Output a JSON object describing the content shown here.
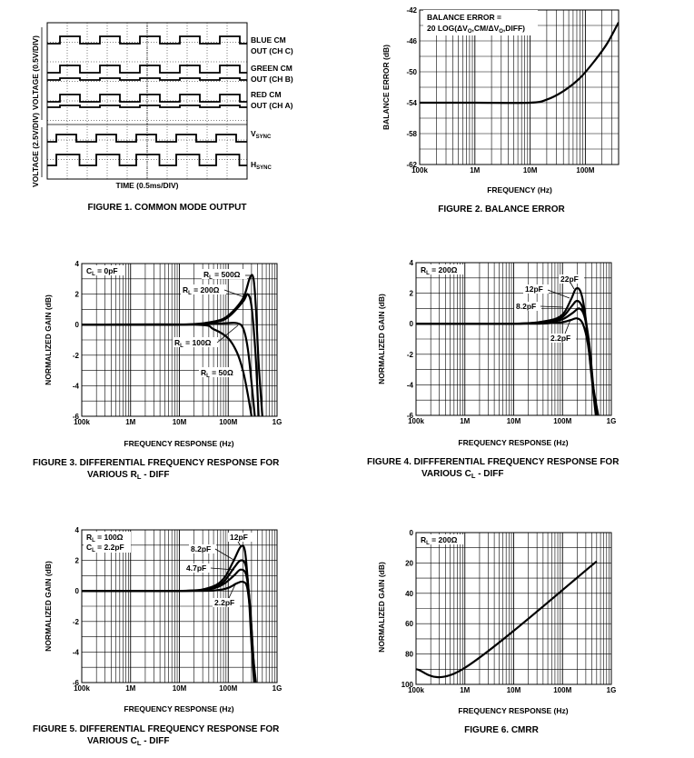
{
  "chart_data": [
    {
      "type": "line",
      "title": "FIGURE 1.  COMMON MODE OUTPUT",
      "xlabel": "TIME (0.5ms/DIV)",
      "ylabels": [
        "VOLTAGE (0.5V/DIV)",
        "VOLTAGE (2.5V/DIV)"
      ],
      "traces": [
        {
          "label": "BLUE CM",
          "label2": "OUT (CH C)"
        },
        {
          "label": "GREEN CM",
          "label2": "OUT (CH B)"
        },
        {
          "label": "RED CM",
          "label2": "OUT (CH A)"
        },
        {
          "label": "V",
          "sub": "SYNC"
        },
        {
          "label": "H",
          "sub": "SYNC"
        }
      ]
    },
    {
      "type": "line",
      "title": "FIGURE 2.  BALANCE ERROR",
      "xlabel": "FREQUENCY (Hz)",
      "ylabel": "BALANCE ERROR (dB)",
      "xscale": "log",
      "xlim": [
        100000,
        400000000
      ],
      "ylim": [
        -62,
        -42
      ],
      "xticks": [
        {
          "v": 100000,
          "t": "100k"
        },
        {
          "v": 1000000,
          "t": "1M"
        },
        {
          "v": 10000000,
          "t": "10M"
        },
        {
          "v": 100000000,
          "t": "100M"
        }
      ],
      "yticks": [
        "-42",
        "-46",
        "-50",
        "-54",
        "-58",
        "-62"
      ],
      "legend": [
        "BALANCE ERROR =",
        "20 LOG(ΔV",
        "O",
        ",CM/ΔV",
        "O",
        ",DIFF)"
      ],
      "series": [
        {
          "name": "balance",
          "x": [
            100000,
            1000000,
            10000000,
            20000000,
            40000000,
            80000000,
            150000000,
            250000000,
            400000000
          ],
          "y": [
            -54,
            -54,
            -54,
            -53.6,
            -52.5,
            -50.8,
            -48.5,
            -46.3,
            -43.6
          ]
        }
      ]
    },
    {
      "type": "line",
      "title": "FIGURE 3.  DIFFERENTIAL FREQUENCY RESPONSE FOR",
      "title2": "VARIOUS R",
      "title2_sub": "L",
      "title2_rest": " - DIFF",
      "xlabel": "FREQUENCY RESPONSE (Hz)",
      "ylabel": "NORMALIZED GAIN (dB)",
      "xscale": "log",
      "xlim": [
        100000,
        1000000000
      ],
      "ylim": [
        -6,
        4
      ],
      "xticks": [
        {
          "v": 100000,
          "t": "100k"
        },
        {
          "v": 1000000,
          "t": "1M"
        },
        {
          "v": 10000000,
          "t": "10M"
        },
        {
          "v": 100000000,
          "t": "100M"
        },
        {
          "v": 1000000000,
          "t": "1G"
        }
      ],
      "yticks": [
        "4",
        "2",
        "0",
        "-2",
        "-4",
        "-6"
      ],
      "note": {
        "a": "C",
        "sub": "L",
        "b": " = 0pF"
      },
      "series": [
        {
          "name": "RL = 500Ω",
          "x": [
            100000,
            10000000,
            50000000,
            100000000,
            200000000,
            280000000,
            330000000,
            370000000,
            420000000,
            500000000
          ],
          "y": [
            0,
            0,
            0.2,
            0.6,
            1.7,
            3.1,
            3.0,
            1.0,
            -2.5,
            -6
          ]
        },
        {
          "name": "RL = 200Ω",
          "x": [
            100000,
            10000000,
            50000000,
            100000000,
            200000000,
            250000000,
            300000000,
            360000000,
            420000000
          ],
          "y": [
            0,
            0,
            0.15,
            0.5,
            1.5,
            2.0,
            1.2,
            -1.8,
            -6
          ]
        },
        {
          "name": "RL = 100Ω",
          "x": [
            100000,
            10000000,
            50000000,
            100000000,
            150000000,
            200000000,
            250000000,
            300000000,
            350000000
          ],
          "y": [
            0,
            0,
            0.05,
            0.1,
            0.1,
            -0.2,
            -1.5,
            -3.8,
            -6
          ]
        },
        {
          "name": "RL = 50Ω",
          "x": [
            100000,
            20000000,
            50000000,
            100000000,
            150000000,
            200000000,
            250000000,
            300000000
          ],
          "y": [
            0,
            0,
            -0.3,
            -0.9,
            -1.8,
            -3.0,
            -4.5,
            -6
          ]
        }
      ],
      "annotations": [
        {
          "a": "R",
          "sub": "L",
          "b": " = 500Ω"
        },
        {
          "a": "R",
          "sub": "L",
          "b": " = 200Ω"
        },
        {
          "a": "R",
          "sub": "L",
          "b": " = 100Ω"
        },
        {
          "a": "R",
          "sub": "L",
          "b": " = 50Ω"
        }
      ]
    },
    {
      "type": "line",
      "title": "FIGURE 4.  DIFFFERENTIAL FREQUENCY RESPONSE FOR",
      "title2": "VARIOUS C",
      "title2_sub": "L",
      "title2_rest": " - DIFF",
      "xlabel": "FREQUENCY RESPONSE (Hz)",
      "ylabel": "NORMALIZED GAIN (dB)",
      "xscale": "log",
      "xlim": [
        100000,
        1000000000
      ],
      "ylim": [
        -6,
        4
      ],
      "xticks": [
        {
          "v": 100000,
          "t": "100k"
        },
        {
          "v": 1000000,
          "t": "1M"
        },
        {
          "v": 10000000,
          "t": "10M"
        },
        {
          "v": 100000000,
          "t": "100M"
        },
        {
          "v": 1000000000,
          "t": "1G"
        }
      ],
      "yticks": [
        "4",
        "2",
        "0",
        "-2",
        "-4",
        "-6"
      ],
      "note": {
        "a": "R",
        "sub": "L",
        "b": " = 200Ω"
      },
      "series": [
        {
          "name": "22pF",
          "x": [
            100000,
            10000000,
            50000000,
            100000000,
            150000000,
            190000000,
            240000000,
            300000000,
            380000000,
            480000000
          ],
          "y": [
            0,
            0,
            0.2,
            0.6,
            1.6,
            2.3,
            2.0,
            0.3,
            -3.0,
            -6
          ]
        },
        {
          "name": "12pF",
          "x": [
            100000,
            10000000,
            50000000,
            100000000,
            150000000,
            200000000,
            260000000,
            330000000,
            420000000,
            500000000
          ],
          "y": [
            0,
            0,
            0.15,
            0.45,
            1.1,
            1.5,
            1.0,
            -0.8,
            -4.0,
            -6
          ]
        },
        {
          "name": "8.2pF",
          "x": [
            100000,
            10000000,
            50000000,
            100000000,
            160000000,
            220000000,
            280000000,
            350000000,
            440000000,
            520000000
          ],
          "y": [
            0,
            0,
            0.1,
            0.3,
            0.7,
            1.0,
            0.5,
            -1.2,
            -4.5,
            -6
          ]
        },
        {
          "name": "2.2pF",
          "x": [
            100000,
            20000000,
            60000000,
            100000000,
            150000000,
            200000000,
            260000000,
            330000000,
            430000000,
            540000000
          ],
          "y": [
            0,
            0,
            0.05,
            0.1,
            0.25,
            0.35,
            0.0,
            -1.3,
            -4.2,
            -6
          ]
        }
      ],
      "annotations": [
        {
          "t": "22pF"
        },
        {
          "t": "12pF"
        },
        {
          "t": "8.2pF"
        },
        {
          "t": "2.2pF"
        }
      ]
    },
    {
      "type": "line",
      "title": "FIGURE 5.  DIFFERENTIAL FREQUENCY RESPONSE FOR",
      "title2": "VARIOUS C",
      "title2_sub": "L",
      "title2_rest": " - DIFF",
      "xlabel": "FREQUENCY RESPONSE (Hz)",
      "ylabel": "NORMALIZED GAIN (dB)",
      "xscale": "log",
      "xlim": [
        100000,
        1000000000
      ],
      "ylim": [
        -6,
        4
      ],
      "xticks": [
        {
          "v": 100000,
          "t": "100k"
        },
        {
          "v": 1000000,
          "t": "1M"
        },
        {
          "v": 10000000,
          "t": "10M"
        },
        {
          "v": 100000000,
          "t": "100M"
        },
        {
          "v": 1000000000,
          "t": "1G"
        }
      ],
      "yticks": [
        "4",
        "2",
        "0",
        "-2",
        "-4",
        "-6"
      ],
      "note": {
        "a": "R",
        "sub": "L",
        "b": " = 100Ω"
      },
      "note2": {
        "a": "C",
        "sub": "L",
        "b": " = 2.2pF"
      },
      "series": [
        {
          "name": "12pF",
          "x": [
            100000,
            10000000,
            40000000,
            80000000,
            130000000,
            180000000,
            220000000,
            260000000,
            300000000,
            340000000
          ],
          "y": [
            0,
            0,
            0.2,
            0.8,
            2.0,
            2.9,
            2.6,
            0.0,
            -3.5,
            -6
          ]
        },
        {
          "name": "8.2pF",
          "x": [
            100000,
            10000000,
            40000000,
            80000000,
            130000000,
            180000000,
            230000000,
            270000000,
            310000000,
            350000000
          ],
          "y": [
            0,
            0,
            0.15,
            0.6,
            1.5,
            2.0,
            1.6,
            -0.5,
            -3.8,
            -6
          ]
        },
        {
          "name": "4.7pF",
          "x": [
            100000,
            10000000,
            40000000,
            80000000,
            130000000,
            180000000,
            235000000,
            280000000,
            320000000,
            360000000
          ],
          "y": [
            0,
            0,
            0.1,
            0.45,
            1.0,
            1.4,
            1.0,
            -1.0,
            -4.0,
            -6
          ]
        },
        {
          "name": "2.2pF",
          "x": [
            100000,
            20000000,
            60000000,
            100000000,
            150000000,
            200000000,
            245000000,
            290000000,
            330000000,
            370000000
          ],
          "y": [
            0,
            0,
            0.05,
            0.2,
            0.5,
            0.6,
            0.2,
            -1.8,
            -4.5,
            -6
          ]
        }
      ],
      "annotations": [
        {
          "t": "12pF"
        },
        {
          "t": "8.2pF"
        },
        {
          "t": "4.7pF"
        },
        {
          "t": "2.2pF"
        }
      ]
    },
    {
      "type": "line",
      "title": "FIGURE 6.  CMRR",
      "xlabel": "FREQUENCY RESPONSE (Hz)",
      "ylabel": "NORMALIZED GAIN (dB)",
      "xscale": "log",
      "xlim": [
        100000,
        1000000000
      ],
      "ylim": [
        100,
        0
      ],
      "xticks": [
        {
          "v": 100000,
          "t": "100k"
        },
        {
          "v": 1000000,
          "t": "1M"
        },
        {
          "v": 10000000,
          "t": "10M"
        },
        {
          "v": 100000000,
          "t": "100M"
        },
        {
          "v": 1000000000,
          "t": "1G"
        }
      ],
      "yticks": [
        "0",
        "20",
        "40",
        "60",
        "80",
        "100"
      ],
      "note": {
        "a": "R",
        "sub": "L",
        "b": " = 200Ω"
      },
      "series": [
        {
          "name": "cmrr",
          "x": [
            100000,
            900000,
            500000000
          ],
          "y": [
            90,
            90,
            19
          ]
        }
      ]
    }
  ]
}
